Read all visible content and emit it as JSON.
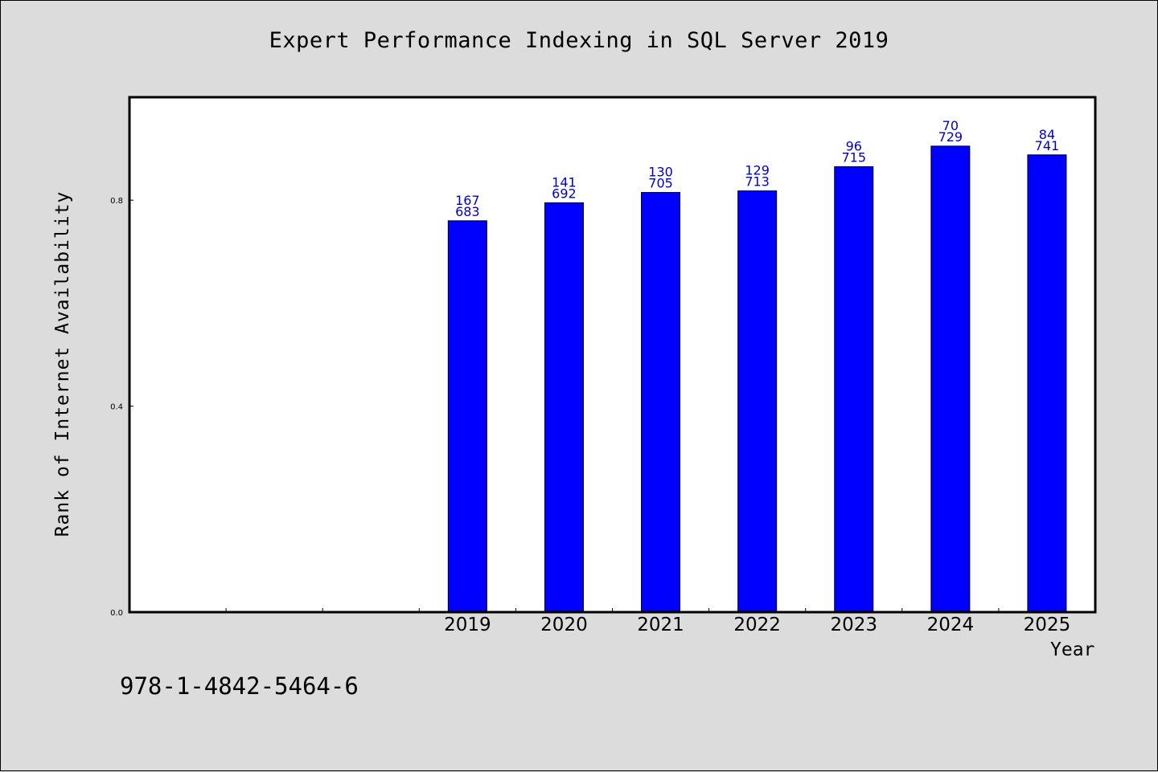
{
  "chart_data": {
    "type": "bar",
    "title": "Expert Performance Indexing in SQL Server 2019",
    "xlabel": "Year",
    "ylabel": "Rank of Internet Availability",
    "categories": [
      "2019",
      "2020",
      "2021",
      "2022",
      "2023",
      "2024",
      "2025"
    ],
    "x_slots_total": 10,
    "x_slot_start": 3,
    "values": [
      0.76,
      0.795,
      0.815,
      0.818,
      0.865,
      0.905,
      0.888
    ],
    "label_top": [
      "167",
      "141",
      "130",
      "129",
      "96",
      "70",
      "84"
    ],
    "label_bottom": [
      "683",
      "692",
      "705",
      "713",
      "715",
      "729",
      "741"
    ],
    "ylim": [
      0,
      1.0
    ],
    "yticks": [
      0.0,
      0.4,
      0.8
    ],
    "ytick_labels": [
      "0.0",
      "0.4",
      "0.8"
    ],
    "grid": false,
    "colors": {
      "bar": "#0000ff",
      "label": "#0000cc",
      "plot_bg": "#ffffff",
      "page_bg": "#dcdcdc"
    }
  },
  "footer": {
    "isbn": "978-1-4842-5464-6"
  }
}
